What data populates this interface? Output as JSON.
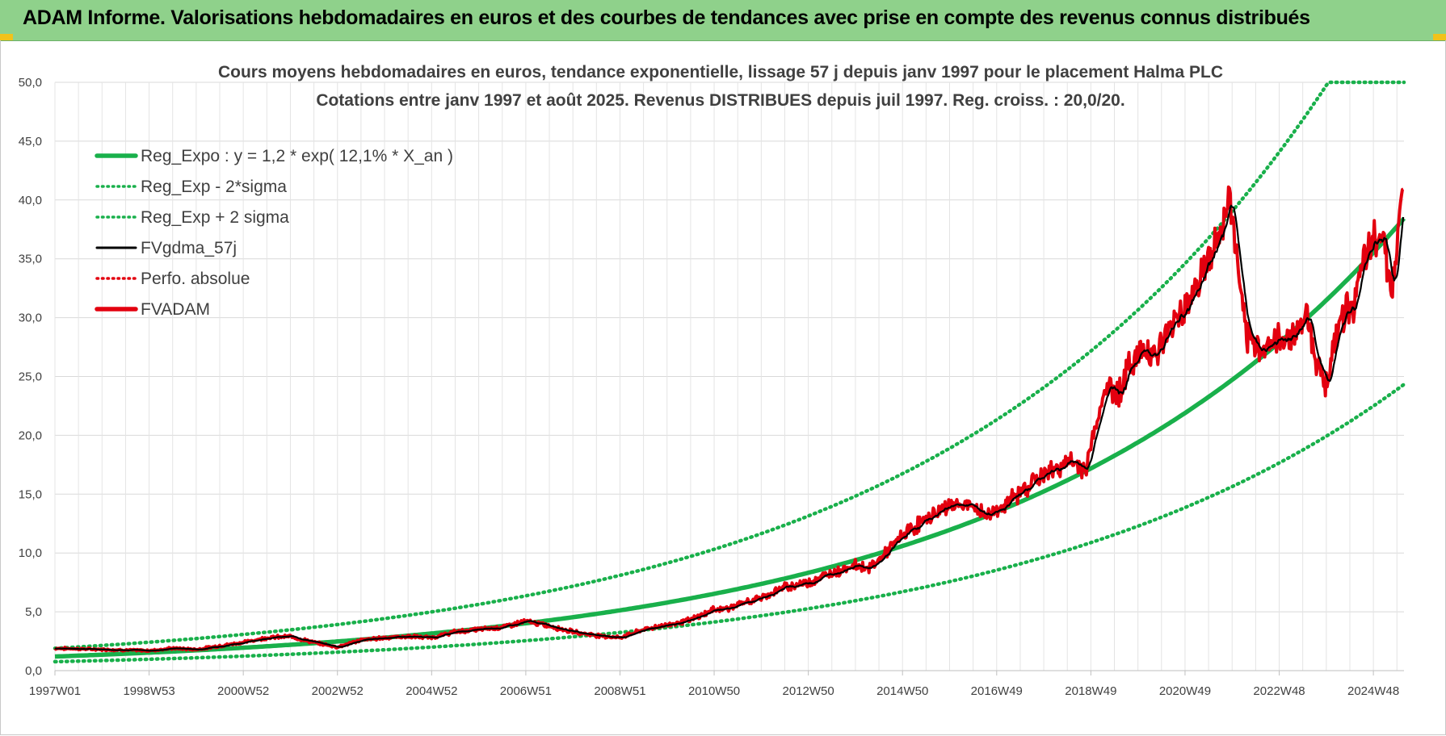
{
  "header": {
    "title": "ADAM Informe. Valorisations hebdomadaires en euros et des courbes de tendances avec prise en compte des revenus connus distribués"
  },
  "colors": {
    "banner": "#8fd18b",
    "trend_green": "#19b04b",
    "price_red": "#e3000f",
    "average_black": "#000000"
  },
  "chart_data": {
    "type": "line",
    "title_lines": [
      "Cours moyens hebdomadaires en euros, tendance exponentielle, lissage 57 j depuis janv 1997  pour le  placement Halma PLC",
      "Cotations entre janv 1997 et août 2025.  Revenus DISTRIBUES depuis juil 1997.  Reg. croiss. : 20,0/20."
    ],
    "xlabel": "",
    "ylabel": "",
    "ylim": [
      0,
      50
    ],
    "yticks": [
      "0,0",
      "5,0",
      "10,0",
      "15,0",
      "20,0",
      "25,0",
      "30,0",
      "35,0",
      "40,0",
      "45,0",
      "50,0"
    ],
    "xlim": [
      1997.0,
      2025.65
    ],
    "xticks": [
      {
        "label": "1997W01",
        "x": 1997.0
      },
      {
        "label": "1998W53",
        "x": 1999.0
      },
      {
        "label": "2000W52",
        "x": 2001.0
      },
      {
        "label": "2002W52",
        "x": 2003.0
      },
      {
        "label": "2004W52",
        "x": 2005.0
      },
      {
        "label": "2006W51",
        "x": 2007.0
      },
      {
        "label": "2008W51",
        "x": 2009.0
      },
      {
        "label": "2010W50",
        "x": 2011.0
      },
      {
        "label": "2012W50",
        "x": 2013.0
      },
      {
        "label": "2014W50",
        "x": 2015.0
      },
      {
        "label": "2016W49",
        "x": 2017.0
      },
      {
        "label": "2018W49",
        "x": 2019.0
      },
      {
        "label": "2020W49",
        "x": 2021.0
      },
      {
        "label": "2022W48",
        "x": 2023.0
      },
      {
        "label": "2024W48",
        "x": 2025.0
      }
    ],
    "grid": true,
    "legend_position": "top-left",
    "trend": {
      "a": 1.2,
      "rate": 0.121,
      "sigma_factor": 1.58,
      "cap": 50
    },
    "series": [
      {
        "name": "Reg_Expo : y = 1,2 * exp( 12,1% *  X_an )",
        "style": "solid-thick",
        "color": "#19b04b"
      },
      {
        "name": "Reg_Exp - 2*sigma",
        "style": "dotted",
        "color": "#19b04b"
      },
      {
        "name": "Reg_Exp + 2 sigma",
        "style": "dotted",
        "color": "#19b04b"
      },
      {
        "name": "FVgdma_57j",
        "style": "solid",
        "color": "#000000"
      },
      {
        "name": "Perfo. absolue",
        "style": "dotted",
        "color": "#e3000f"
      },
      {
        "name": "FVADAM",
        "style": "solid-thick",
        "color": "#e3000f"
      }
    ],
    "fvadam": {
      "x": [
        1997.0,
        1998.0,
        1999.0,
        1999.5,
        2000.0,
        2000.5,
        2001.0,
        2001.5,
        2002.0,
        2002.5,
        2003.0,
        2003.5,
        2004.0,
        2004.5,
        2005.0,
        2005.5,
        2006.0,
        2006.5,
        2007.0,
        2007.5,
        2008.0,
        2008.5,
        2009.0,
        2009.5,
        2010.0,
        2010.5,
        2011.0,
        2011.3,
        2011.6,
        2012.0,
        2012.5,
        2013.0,
        2013.5,
        2014.0,
        2014.3,
        2014.6,
        2015.0,
        2015.4,
        2015.8,
        2016.0,
        2016.4,
        2016.8,
        2017.0,
        2017.4,
        2017.8,
        2018.0,
        2018.5,
        2018.9,
        2019.0,
        2019.3,
        2019.6,
        2019.9,
        2020.2,
        2020.4,
        2020.8,
        2021.0,
        2021.4,
        2021.8,
        2021.95,
        2022.1,
        2022.3,
        2022.6,
        2022.9,
        2023.2,
        2023.4,
        2023.6,
        2023.8,
        2024.0,
        2024.3,
        2024.6,
        2024.8,
        2025.0,
        2025.2,
        2025.4,
        2025.65
      ],
      "y": [
        1.9,
        1.8,
        1.7,
        1.9,
        1.8,
        2.1,
        2.4,
        2.8,
        2.9,
        2.4,
        2.0,
        2.6,
        2.8,
        2.9,
        2.8,
        3.3,
        3.5,
        3.7,
        4.2,
        3.8,
        3.3,
        3.0,
        2.8,
        3.5,
        3.9,
        4.3,
        5.2,
        5.3,
        5.7,
        6.2,
        7.1,
        7.5,
        8.3,
        9.0,
        8.7,
        9.8,
        11.5,
        12.6,
        13.6,
        14.1,
        14.0,
        13.2,
        13.6,
        14.8,
        16.2,
        16.6,
        17.7,
        17.2,
        19.0,
        24.0,
        23.8,
        26.5,
        27.5,
        26.8,
        30.0,
        31.0,
        34.0,
        37.5,
        40.5,
        35.0,
        28.0,
        27.5,
        27.8,
        28.5,
        29.0,
        30.5,
        26.0,
        24.5,
        30.0,
        31.5,
        34.5,
        36.5,
        37.5,
        32.0,
        41.8
      ]
    }
  }
}
